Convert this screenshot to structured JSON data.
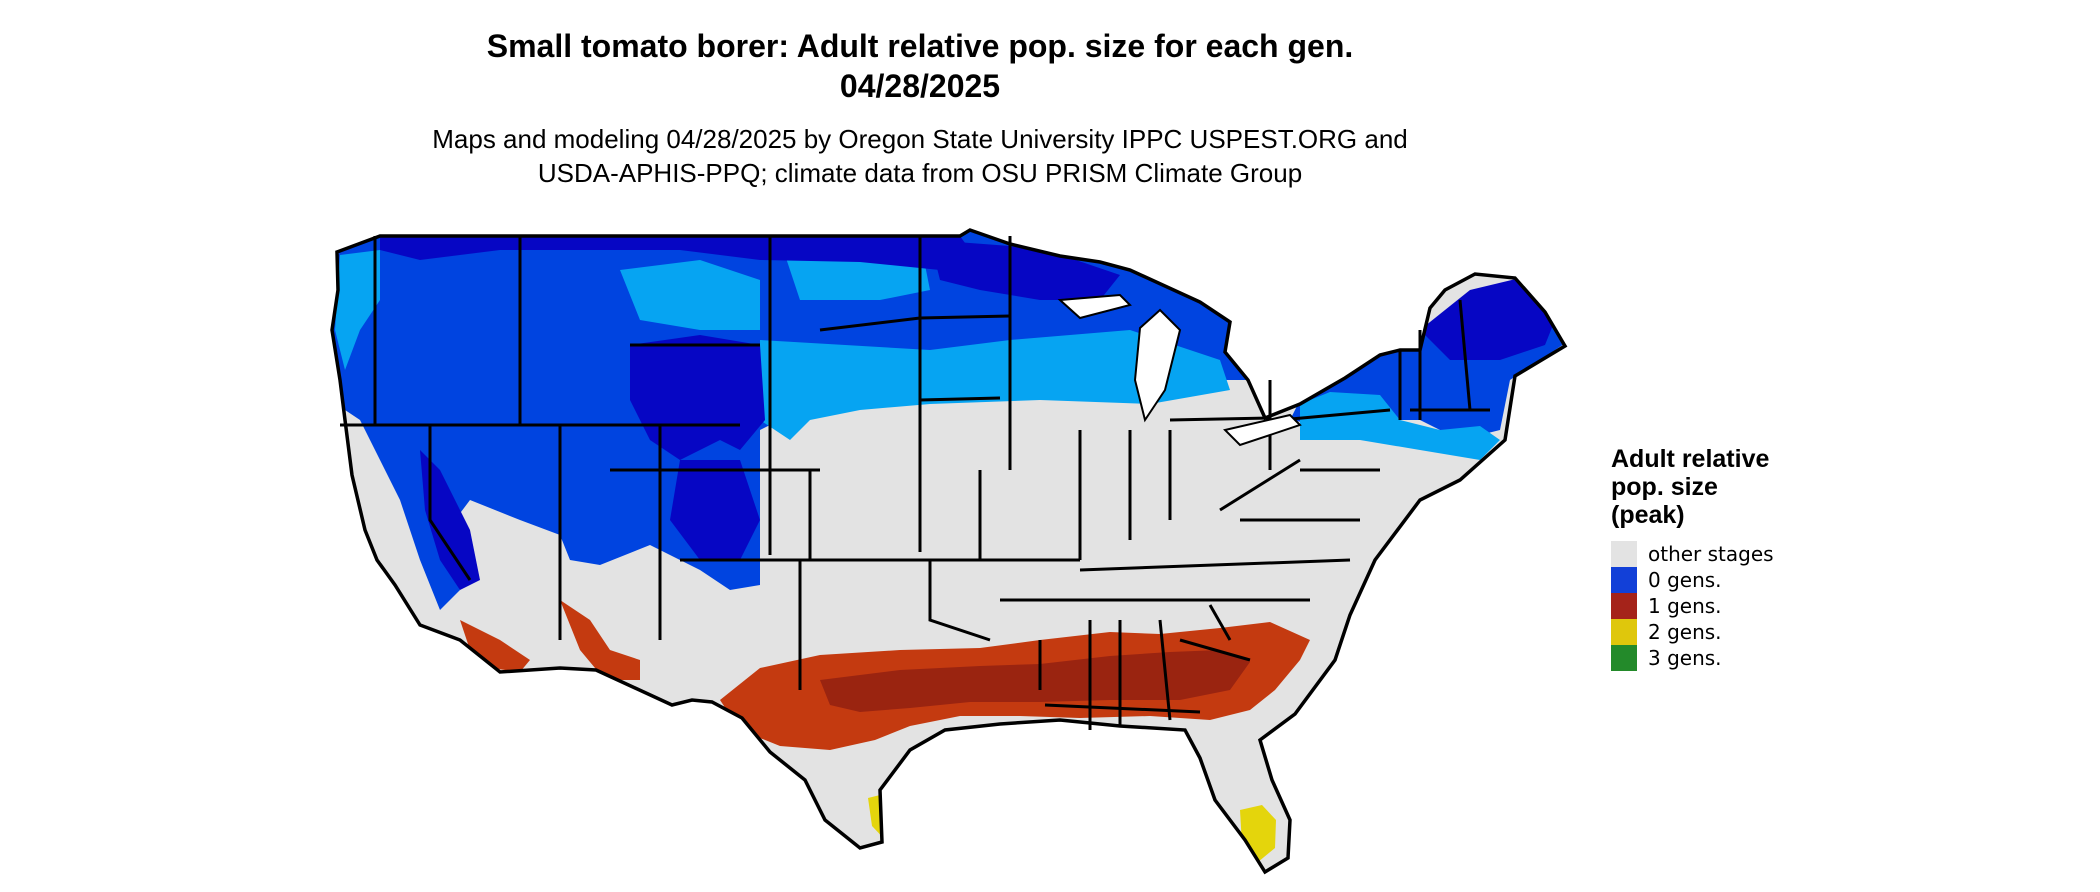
{
  "title": {
    "line1": "Small tomato borer: Adult relative pop. size for each gen.",
    "line2": "04/28/2025"
  },
  "subtitle": {
    "line1": "Maps and modeling 04/28/2025 by Oregon State University IPPC USPEST.ORG and",
    "line2": "USDA-APHIS-PPQ; climate data from OSU PRISM Climate Group"
  },
  "legend": {
    "title_lines": [
      "Adult relative",
      "pop. size",
      "(peak)"
    ],
    "items": [
      {
        "label": "other stages",
        "color": "#e3e3e3"
      },
      {
        "label": "0 gens.",
        "color": "#1240d8"
      },
      {
        "label": "1 gens.",
        "color": "#a5231a"
      },
      {
        "label": "2 gens.",
        "color": "#dfc70c"
      },
      {
        "label": "3 gens.",
        "color": "#238a2a"
      }
    ]
  },
  "map": {
    "colors": {
      "land": "#e3e3e3",
      "blue_dark": "#0606c4",
      "blue_mid": "#0044e0",
      "blue_light": "#06a4f2",
      "red": "#c43a10",
      "red_dark": "#9a2410",
      "yellow": "#e4d50c",
      "border": "#000000"
    }
  }
}
